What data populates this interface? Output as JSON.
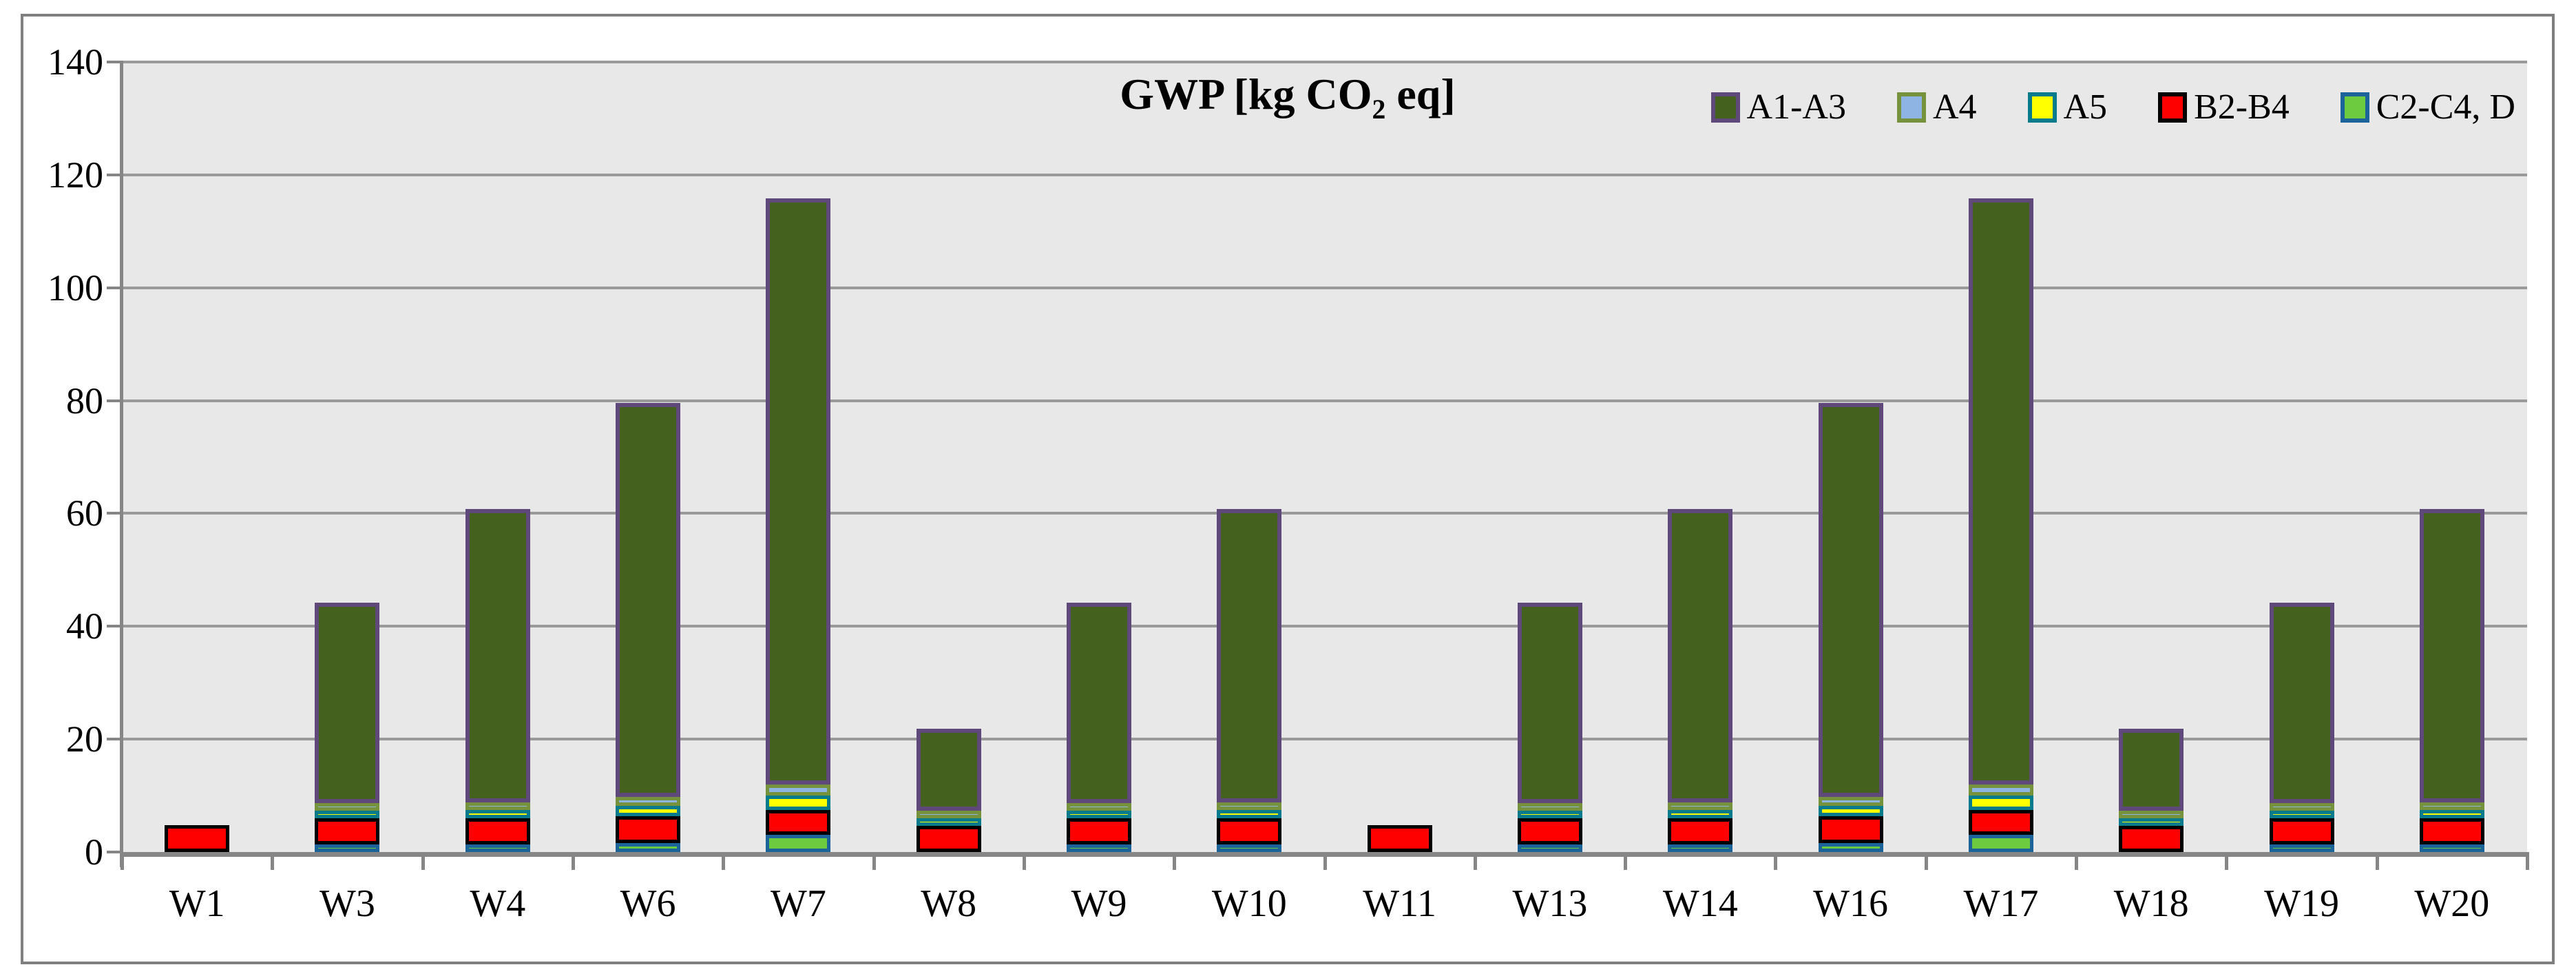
{
  "title": {
    "main": "GWP [kg CO",
    "sub": "2",
    "tail": " eq]"
  },
  "legend": [
    {
      "label": "A1-A3",
      "fill": "#45611e",
      "border": "#5f497a"
    },
    {
      "label": "A4",
      "fill": "#8db4e2",
      "border": "#76923c"
    },
    {
      "label": "A5",
      "fill": "#ffff00",
      "border": "#077a8c"
    },
    {
      "label": "B2-B4",
      "fill": "#ff0000",
      "border": "#000000"
    },
    {
      "label": "C2-C4, D",
      "fill": "#6ccb3e",
      "border": "#1b6398"
    }
  ],
  "chart_data": {
    "type": "bar",
    "stacked": true,
    "title": "GWP [kg CO2 eq]",
    "ylim": [
      0,
      140
    ],
    "yticks": [
      0,
      20,
      40,
      60,
      80,
      100,
      120,
      140
    ],
    "grid": true,
    "legend_position": "top-right",
    "categories": [
      "W1",
      "W3",
      "W4",
      "W6",
      "W7",
      "W8",
      "W9",
      "W10",
      "W11",
      "W13",
      "W14",
      "W16",
      "W17",
      "W18",
      "W19",
      "W20"
    ],
    "series": [
      {
        "name": "C2-C4, D",
        "fill": "#6ccb3e",
        "border": "#1b6398",
        "border_px": 5,
        "values": [
          0,
          0.7,
          1.4,
          1.6,
          3.0,
          0,
          0.6,
          1.4,
          0,
          0.7,
          1.4,
          1.6,
          3.0,
          0,
          0.6,
          1.4
        ]
      },
      {
        "name": "B2-B4",
        "fill": "#ff0000",
        "border": "#000000",
        "border_px": 5,
        "values": [
          4.8,
          4.6,
          4.6,
          4.7,
          4.5,
          4.6,
          4.6,
          4.6,
          4.8,
          4.6,
          4.6,
          4.7,
          4.5,
          4.6,
          4.6,
          4.6
        ]
      },
      {
        "name": "A5",
        "fill": "#ffff00",
        "border": "#077a8c",
        "border_px": 5,
        "values": [
          0,
          1.0,
          1.5,
          1.9,
          2.5,
          0.3,
          1.0,
          1.5,
          0,
          1.0,
          1.5,
          1.9,
          2.5,
          0.3,
          1.0,
          1.5
        ]
      },
      {
        "name": "A4",
        "fill": "#8db4e2",
        "border": "#76923c",
        "border_px": 5,
        "values": [
          0,
          0.4,
          0.9,
          1.6,
          2.0,
          0.1,
          0.4,
          0.9,
          0,
          0.4,
          0.9,
          1.6,
          2.0,
          0.1,
          0.4,
          0.9
        ]
      },
      {
        "name": "A1-A3",
        "fill": "#45611e",
        "border": "#5f497a",
        "border_px": 6,
        "values": [
          0,
          35.5,
          51.9,
          69.8,
          103.8,
          14.6,
          35.5,
          51.9,
          0,
          35.5,
          51.9,
          69.8,
          103.8,
          14.6,
          35.5,
          51.9
        ]
      }
    ]
  }
}
